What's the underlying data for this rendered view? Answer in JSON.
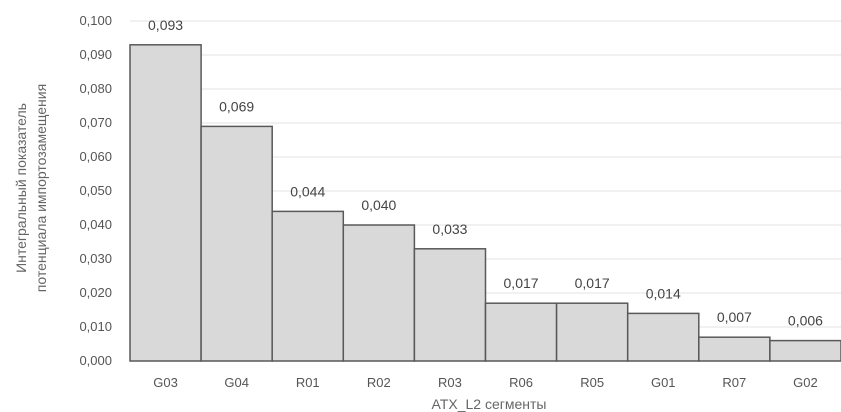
{
  "chart_data": {
    "type": "bar",
    "categories": [
      "G03",
      "G04",
      "R01",
      "R02",
      "R03",
      "R06",
      "R05",
      "G01",
      "R07",
      "G02"
    ],
    "values": [
      0.093,
      0.069,
      0.044,
      0.04,
      0.033,
      0.017,
      0.017,
      0.014,
      0.007,
      0.006
    ],
    "data_labels": [
      "0,093",
      "0,069",
      "0,044",
      "0,040",
      "0,033",
      "0,017",
      "0,017",
      "0,014",
      "0,007",
      "0,006"
    ],
    "ylim": [
      0,
      0.1
    ],
    "yticks": [
      0,
      0.01,
      0.02,
      0.03,
      0.04,
      0.05,
      0.06,
      0.07,
      0.08,
      0.09,
      0.1
    ],
    "ytick_labels": [
      "0,000",
      "0,010",
      "0,020",
      "0,030",
      "0,040",
      "0,050",
      "0,060",
      "0,070",
      "0,080",
      "0,090",
      "0,100"
    ],
    "xlabel": "ATX_L2 сегменты",
    "ylabel_lines": [
      "Интегральный показатель",
      "потенциала импортозамещения"
    ],
    "grid": true,
    "colors": {
      "bar_fill": "#d9d9d9",
      "bar_stroke": "#595959",
      "grid": "#e3e3e3"
    }
  }
}
